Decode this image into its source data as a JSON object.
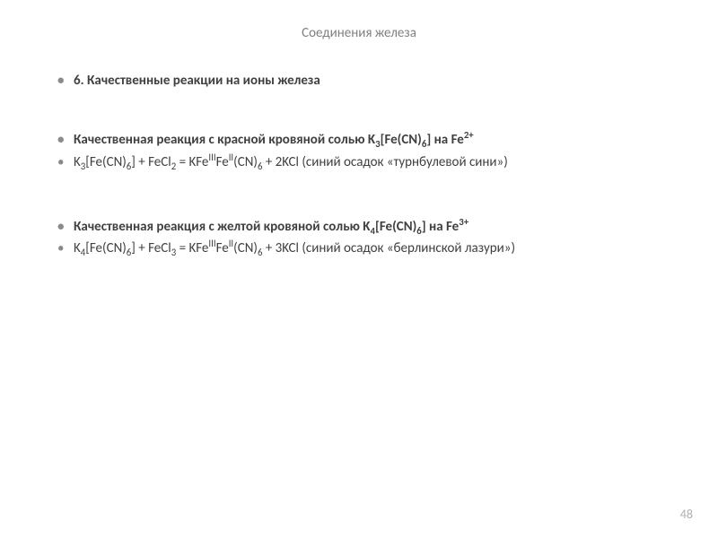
{
  "slide": {
    "title": "Соединения железа",
    "heading": "6. Качественные реакции на ионы железа",
    "block1": {
      "title_pre": "Качественная реакция с красной кровяной солью K",
      "title_sub1": "3",
      "title_mid": "[Fe(CN)",
      "title_sub2": "6",
      "title_post": "] на Fe",
      "title_sup": "2+",
      "eq_a": "K",
      "eq_s1": "3",
      "eq_b": "[Fe(CN)",
      "eq_s2": "6",
      "eq_c": "] + FeCl",
      "eq_s3": "2",
      "eq_d": " = KFe",
      "eq_sup1": "III",
      "eq_e": "Fe",
      "eq_sup2": "II",
      "eq_f": "(CN)",
      "eq_s4": "6",
      "eq_g": " + 2KCl (синий осадок «турнбулевой сини»)"
    },
    "block2": {
      "title_pre": "Качественная реакция с желтой кровяной солью K",
      "title_sub1": "4",
      "title_mid": "[Fe(CN)",
      "title_sub2": "6",
      "title_post": "] на Fe",
      "title_sup": "3+",
      "eq_a": "K",
      "eq_s1": "4",
      "eq_b": "[Fe(CN)",
      "eq_s2": "6",
      "eq_c": "] + FeCl",
      "eq_s3": "3",
      "eq_d": " = KFe",
      "eq_sup1": "III",
      "eq_e": "Fe",
      "eq_sup2": "II",
      "eq_f": "(CN)",
      "eq_s4": "6",
      "eq_g": " + 3KCl (синий осадок «берлинской лазури»)"
    },
    "page_number": "48"
  },
  "style": {
    "background": "#ffffff",
    "title_color": "#808080",
    "text_color": "#404040",
    "bullet_color": "#8a8a8a",
    "pagenum_color": "#b0b0b0",
    "title_fontsize": 15,
    "body_fontsize": 15,
    "font_family": "Calibri"
  }
}
